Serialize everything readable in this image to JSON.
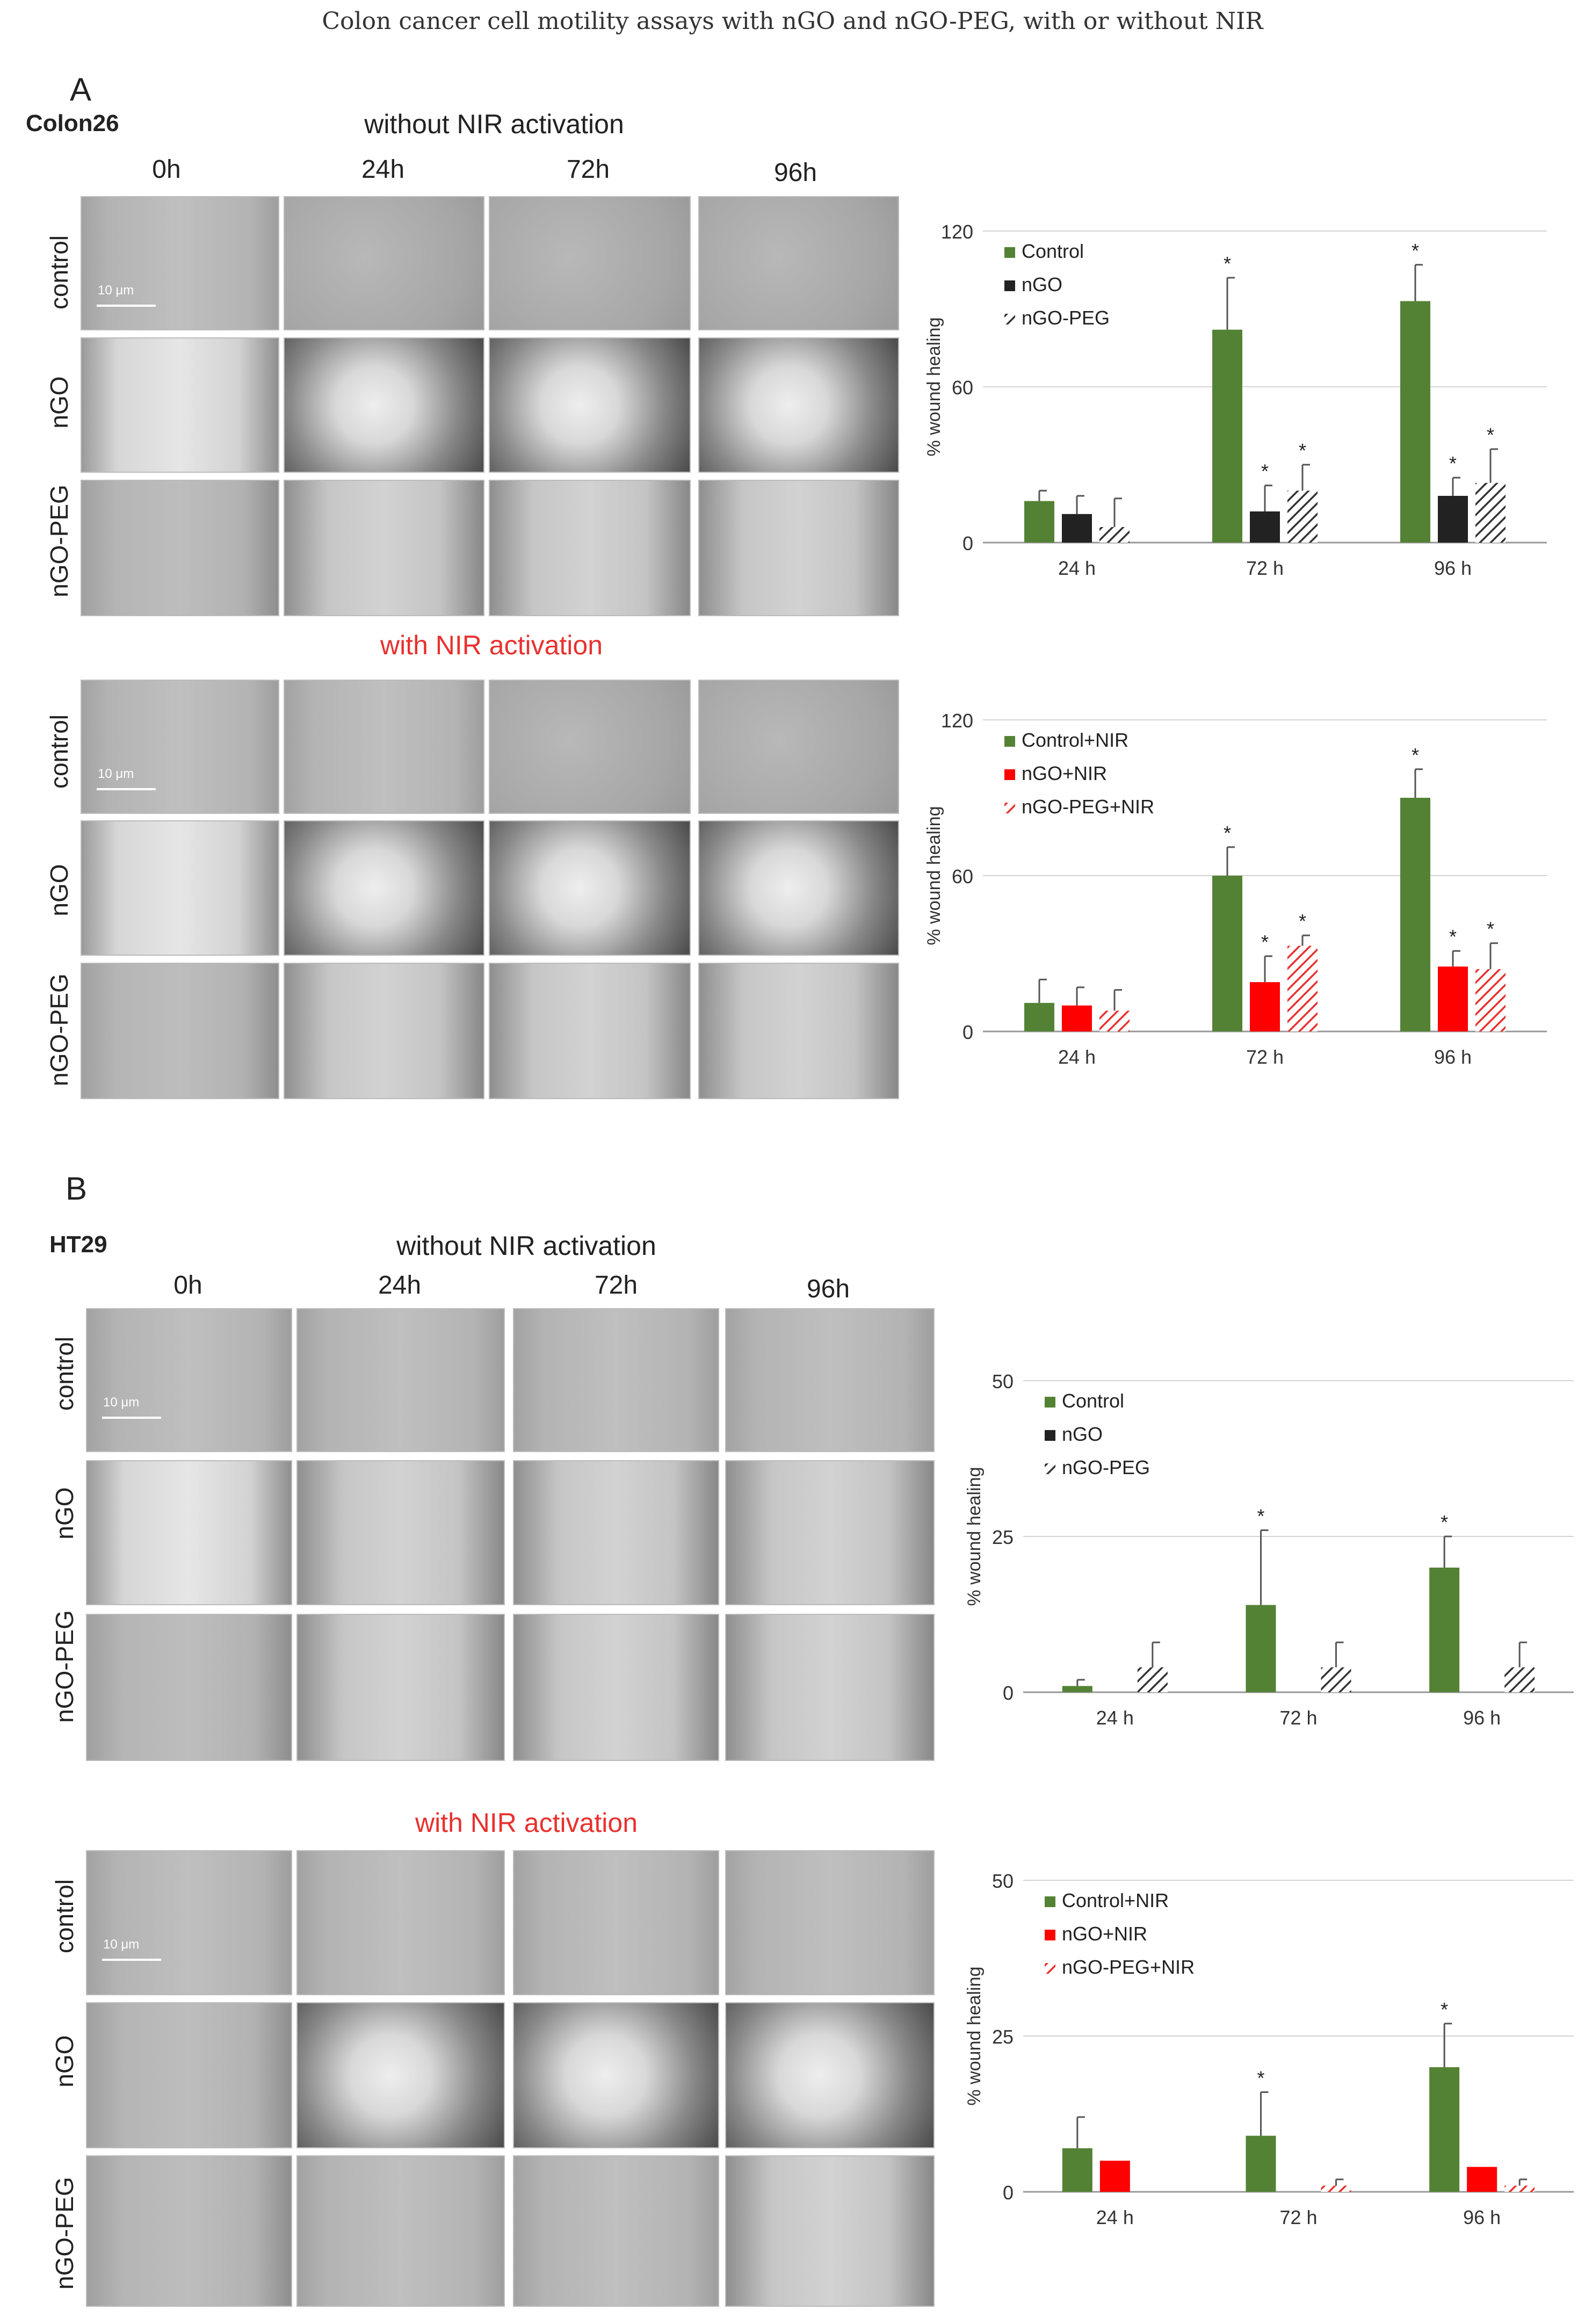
{
  "figure": {
    "title": "Colon cancer cell motility assays with nGO and nGO-PEG,  with or without NIR"
  },
  "panels": [
    {
      "letter": "A",
      "cell_line": "Colon26",
      "timepoints": [
        "0h",
        "24h",
        "72h",
        "96h"
      ],
      "rows": [
        "control",
        "nGO",
        "nGO-PEG"
      ],
      "scale_bar": "10 μm",
      "blocks": [
        {
          "label": "without NIR activation",
          "label_color": "#222222"
        },
        {
          "label": "with NIR  activation",
          "label_color": "#e8312f"
        }
      ]
    },
    {
      "letter": "B",
      "cell_line": "HT29",
      "timepoints": [
        "0h",
        "24h",
        "72h",
        "96h"
      ],
      "rows": [
        "control",
        "nGO",
        "nGO-PEG"
      ],
      "scale_bar": "10 μm",
      "blocks": [
        {
          "label": "without NIR activation",
          "label_color": "#222222"
        },
        {
          "label": "with NIR  activation",
          "label_color": "#e8312f"
        }
      ]
    }
  ],
  "colors": {
    "control": "#548235",
    "ngo": "#222222",
    "ngo_nir": "#ff0000",
    "hatch_dark": "#333333",
    "hatch_red": "#e8312f"
  },
  "chart_data": [
    {
      "type": "bar",
      "panel": "A",
      "ylabel": "% wound healing",
      "ylim": [
        0,
        120
      ],
      "yticks": [
        0,
        60,
        120
      ],
      "categories": [
        "24 h",
        "72 h",
        "96 h"
      ],
      "legend_position": "top-left",
      "series": [
        {
          "name": "Control",
          "style": "solid-green",
          "values": [
            16,
            82,
            93
          ],
          "errors": [
            4,
            20,
            14
          ],
          "star": [
            false,
            true,
            true
          ]
        },
        {
          "name": "nGO",
          "style": "solid-dark",
          "values": [
            11,
            12,
            18
          ],
          "errors": [
            7,
            10,
            7
          ],
          "star": [
            false,
            true,
            true
          ]
        },
        {
          "name": "nGO-PEG",
          "style": "hatch-dark",
          "values": [
            6,
            20,
            23
          ],
          "errors": [
            11,
            10,
            13
          ],
          "star": [
            false,
            true,
            true
          ]
        }
      ]
    },
    {
      "type": "bar",
      "panel": "A",
      "ylabel": "% wound healing",
      "ylim": [
        0,
        120
      ],
      "yticks": [
        0,
        60,
        120
      ],
      "categories": [
        "24 h",
        "72 h",
        "96 h"
      ],
      "legend_position": "top-left",
      "series": [
        {
          "name": "Control+NIR",
          "style": "solid-green",
          "values": [
            11,
            60,
            90
          ],
          "errors": [
            9,
            11,
            11
          ],
          "star": [
            false,
            true,
            true
          ]
        },
        {
          "name": "nGO+NIR",
          "style": "solid-red",
          "values": [
            10,
            19,
            25
          ],
          "errors": [
            7,
            10,
            6
          ],
          "star": [
            false,
            true,
            true
          ]
        },
        {
          "name": "nGO-PEG+NIR",
          "style": "hatch-red",
          "values": [
            8,
            33,
            24
          ],
          "errors": [
            8,
            4,
            10
          ],
          "star": [
            false,
            true,
            true
          ]
        }
      ]
    },
    {
      "type": "bar",
      "panel": "B",
      "ylabel": "% wound healing",
      "ylim": [
        0,
        50
      ],
      "yticks": [
        0,
        25,
        50
      ],
      "categories": [
        "24 h",
        "72 h",
        "96 h"
      ],
      "legend_position": "top-left",
      "series": [
        {
          "name": "Control",
          "style": "solid-green",
          "values": [
            1,
            14,
            20
          ],
          "errors": [
            1,
            12,
            5
          ],
          "star": [
            false,
            true,
            true
          ]
        },
        {
          "name": "nGO",
          "style": "solid-dark",
          "values": [
            0,
            0,
            0
          ],
          "errors": [
            0,
            0,
            0
          ],
          "star": [
            false,
            false,
            false
          ]
        },
        {
          "name": "nGO-PEG",
          "style": "hatch-dark",
          "values": [
            4,
            4,
            4
          ],
          "errors": [
            4,
            4,
            4
          ],
          "star": [
            false,
            false,
            false
          ]
        }
      ]
    },
    {
      "type": "bar",
      "panel": "B",
      "ylabel": "% wound healing",
      "ylim": [
        0,
        50
      ],
      "yticks": [
        0,
        25,
        50
      ],
      "categories": [
        "24 h",
        "72 h",
        "96 h"
      ],
      "legend_position": "top-left",
      "series": [
        {
          "name": "Control+NIR",
          "style": "solid-green",
          "values": [
            7,
            9,
            20
          ],
          "errors": [
            5,
            7,
            7
          ],
          "star": [
            false,
            true,
            true
          ]
        },
        {
          "name": "nGO+NIR",
          "style": "solid-red",
          "values": [
            5,
            0,
            4
          ],
          "errors": [
            0,
            0,
            0
          ],
          "star": [
            false,
            false,
            false
          ]
        },
        {
          "name": "nGO-PEG+NIR",
          "style": "hatch-red",
          "values": [
            0,
            1,
            1
          ],
          "errors": [
            0,
            1,
            1
          ],
          "star": [
            false,
            false,
            false
          ]
        }
      ]
    }
  ]
}
